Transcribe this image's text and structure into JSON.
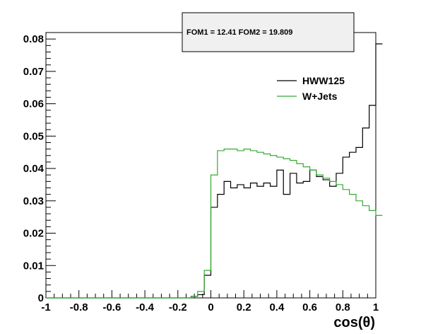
{
  "chart_data": {
    "type": "line",
    "title": "",
    "annotation": "FOM1 = 12.41 FOM2 = 19.809",
    "xlabel": "cos(θ)",
    "ylabel": "",
    "xlim": [
      -1,
      1
    ],
    "ylim": [
      0,
      0.082
    ],
    "x_ticks": [
      "-1",
      "-0.8",
      "-0.6",
      "-0.4",
      "-0.2",
      "0",
      "0.2",
      "0.4",
      "0.6",
      "0.8",
      "1"
    ],
    "y_ticks": [
      "0",
      "0.01",
      "0.02",
      "0.03",
      "0.04",
      "0.05",
      "0.06",
      "0.07",
      "0.08"
    ],
    "bin_edges_start": -1,
    "bin_width": 0.04,
    "legend_placement": "top-right",
    "series": [
      {
        "name": "HWW125",
        "color": "#000000",
        "values": [
          0,
          0,
          0,
          0,
          0,
          0,
          0,
          0,
          0,
          0,
          0,
          0,
          0,
          0,
          0,
          0,
          0,
          0,
          0,
          0,
          0,
          0,
          0.0005,
          0.001,
          0.007,
          0.028,
          0.032,
          0.036,
          0.034,
          0.035,
          0.034,
          0.0355,
          0.0345,
          0.0355,
          0.0345,
          0.0395,
          0.032,
          0.0385,
          0.0355,
          0.036,
          0.0395,
          0.0375,
          0.0365,
          0.0345,
          0.0385,
          0.0435,
          0.045,
          0.0465,
          0.0525,
          0.0595,
          0.0785
        ]
      },
      {
        "name": "W+Jets",
        "color": "#33aa33",
        "values": [
          0,
          0,
          0,
          0,
          0,
          0,
          0,
          0,
          0,
          0,
          0,
          0,
          0,
          0,
          0,
          0,
          0,
          0,
          0,
          0,
          0,
          0,
          0.0005,
          0.002,
          0.0085,
          0.038,
          0.0455,
          0.046,
          0.046,
          0.0455,
          0.046,
          0.0455,
          0.045,
          0.0445,
          0.044,
          0.0435,
          0.043,
          0.0425,
          0.0415,
          0.0405,
          0.0395,
          0.038,
          0.037,
          0.036,
          0.035,
          0.0335,
          0.032,
          0.03,
          0.0285,
          0.027,
          0.0255
        ]
      }
    ]
  }
}
